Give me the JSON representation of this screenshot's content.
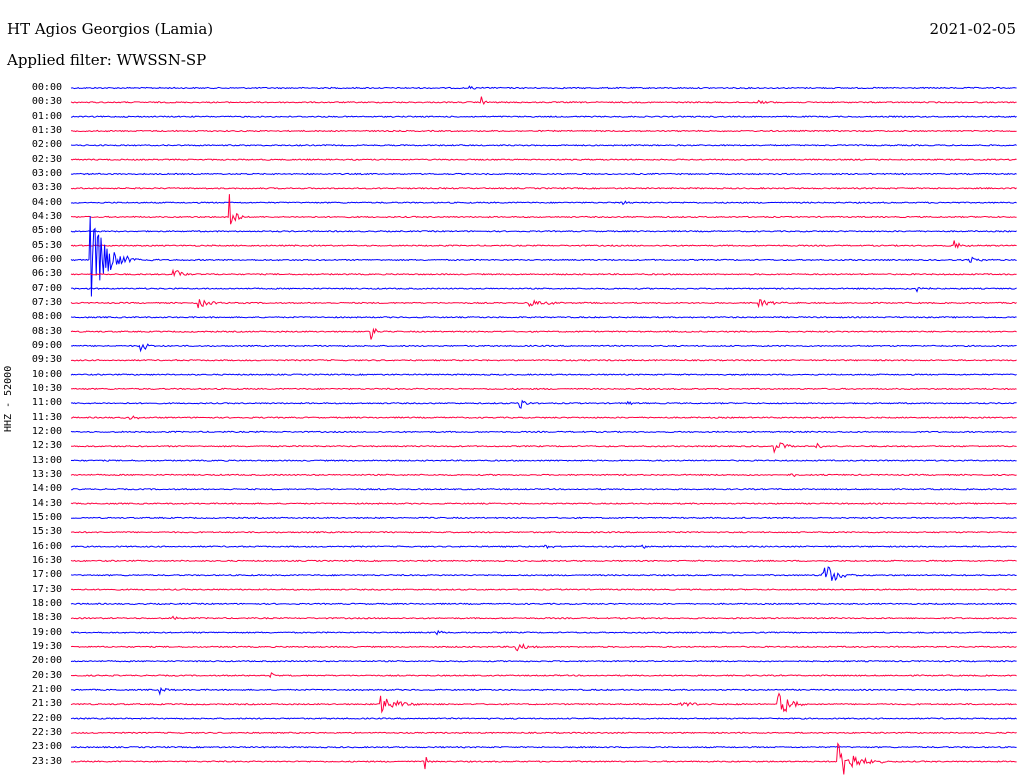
{
  "header": {
    "station": "HT Agios Georgios (Lamia)",
    "date": "2021-02-05",
    "filter": "Applied filter: WWSSN-SP"
  },
  "y_axis_label": "HHZ - 52000",
  "colors": {
    "even": "#0000ff",
    "odd": "#ff0040"
  },
  "chart_data": {
    "type": "line",
    "title": "HT Agios Georgios (Lamia)",
    "row_labels": [
      "00:00",
      "00:30",
      "01:00",
      "01:30",
      "02:00",
      "02:30",
      "03:00",
      "03:30",
      "04:00",
      "04:30",
      "05:00",
      "05:30",
      "06:00",
      "06:30",
      "07:00",
      "07:30",
      "08:00",
      "08:30",
      "09:00",
      "09:30",
      "10:00",
      "10:30",
      "11:00",
      "11:30",
      "12:00",
      "12:30",
      "13:00",
      "13:30",
      "14:00",
      "14:30",
      "15:00",
      "15:30",
      "16:00",
      "16:30",
      "17:00",
      "17:30",
      "18:00",
      "18:30",
      "19:00",
      "19:30",
      "20:00",
      "20:30",
      "21:00",
      "21:30",
      "22:00",
      "22:30",
      "23:00",
      "23:30"
    ],
    "events": [
      {
        "row": "00:00",
        "minute": 12.5,
        "amp": 0.25,
        "dur": 0.5
      },
      {
        "row": "00:30",
        "minute": 13,
        "amp": 0.5,
        "dur": 0.2
      },
      {
        "row": "00:30",
        "minute": 21.8,
        "amp": 0.2,
        "dur": 0.4
      },
      {
        "row": "04:00",
        "minute": 17.5,
        "amp": 0.2,
        "dur": 0.3
      },
      {
        "row": "04:30",
        "minute": 5,
        "amp": 2.0,
        "dur": 0.3
      },
      {
        "row": "05:30",
        "minute": 28,
        "amp": 0.4,
        "dur": 0.4
      },
      {
        "row": "06:00",
        "minute": 0.6,
        "amp": 3.5,
        "dur": 1.0
      },
      {
        "row": "06:00",
        "minute": 28.5,
        "amp": 0.3,
        "dur": 0.6
      },
      {
        "row": "06:30",
        "minute": 3.2,
        "amp": 0.5,
        "dur": 0.6
      },
      {
        "row": "07:00",
        "minute": 26.8,
        "amp": 0.5,
        "dur": 0.4
      },
      {
        "row": "07:30",
        "minute": 4,
        "amp": 0.4,
        "dur": 0.7
      },
      {
        "row": "07:30",
        "minute": 14.5,
        "amp": 0.3,
        "dur": 1.0
      },
      {
        "row": "07:30",
        "minute": 21.8,
        "amp": 0.3,
        "dur": 0.8
      },
      {
        "row": "08:30",
        "minute": 9.5,
        "amp": 0.8,
        "dur": 0.3
      },
      {
        "row": "09:00",
        "minute": 2.2,
        "amp": 0.7,
        "dur": 0.3
      },
      {
        "row": "11:00",
        "minute": 14.2,
        "amp": 0.8,
        "dur": 0.3
      },
      {
        "row": "11:00",
        "minute": 17.6,
        "amp": 0.2,
        "dur": 0.4
      },
      {
        "row": "11:30",
        "minute": 1.8,
        "amp": 0.2,
        "dur": 0.5
      },
      {
        "row": "12:30",
        "minute": 22.3,
        "amp": 0.5,
        "dur": 0.6
      },
      {
        "row": "12:30",
        "minute": 23.6,
        "amp": 0.4,
        "dur": 0.3
      },
      {
        "row": "13:30",
        "minute": 22.8,
        "amp": 0.2,
        "dur": 0.4
      },
      {
        "row": "16:00",
        "minute": 15,
        "amp": 0.3,
        "dur": 0.4
      },
      {
        "row": "16:00",
        "minute": 18.1,
        "amp": 0.2,
        "dur": 0.3
      },
      {
        "row": "17:00",
        "minute": 23.8,
        "amp": 1.2,
        "dur": 0.8
      },
      {
        "row": "18:30",
        "minute": 3.2,
        "amp": 0.2,
        "dur": 0.3
      },
      {
        "row": "19:00",
        "minute": 11.5,
        "amp": 0.2,
        "dur": 0.6
      },
      {
        "row": "19:30",
        "minute": 14.1,
        "amp": 0.5,
        "dur": 0.5
      },
      {
        "row": "20:30",
        "minute": 6.3,
        "amp": 0.3,
        "dur": 0.3
      },
      {
        "row": "21:00",
        "minute": 2.8,
        "amp": 0.3,
        "dur": 0.4
      },
      {
        "row": "21:30",
        "minute": 9.8,
        "amp": 0.8,
        "dur": 0.9
      },
      {
        "row": "21:30",
        "minute": 22.4,
        "amp": 1.4,
        "dur": 0.7
      },
      {
        "row": "21:30",
        "minute": 19.3,
        "amp": 0.2,
        "dur": 1.5
      },
      {
        "row": "23:30",
        "minute": 11.2,
        "amp": 0.7,
        "dur": 0.2
      },
      {
        "row": "23:30",
        "minute": 24.3,
        "amp": 1.8,
        "dur": 1.0
      }
    ]
  }
}
